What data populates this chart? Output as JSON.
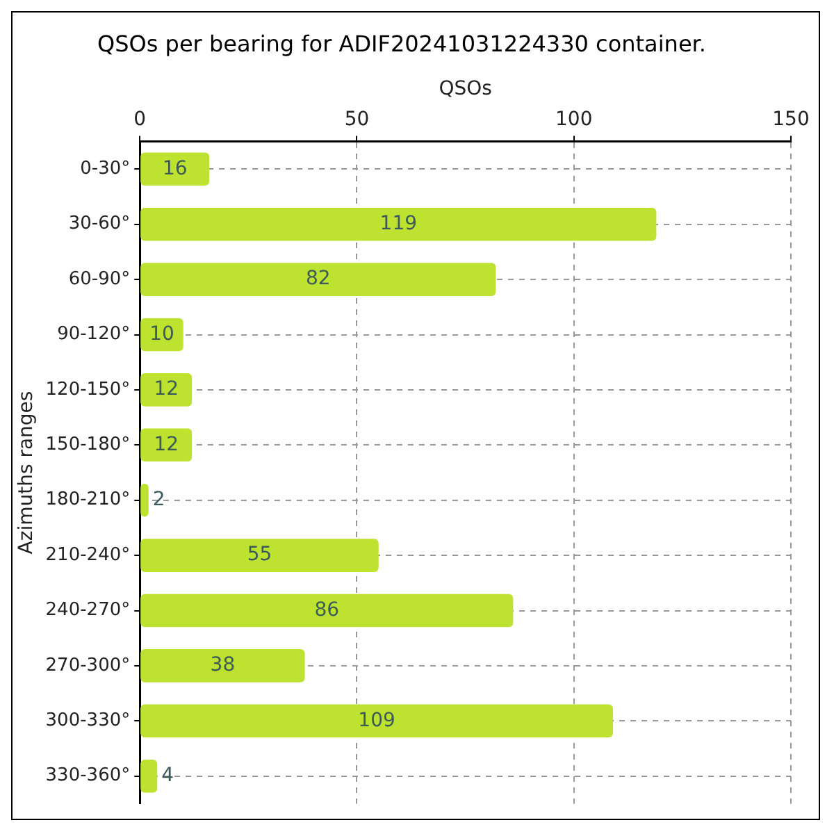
{
  "chart_data": {
    "type": "bar",
    "orientation": "horizontal",
    "title": "QSOs per bearing for ADIF20241031224330 container.",
    "xlabel": "QSOs",
    "ylabel": "Azimuths ranges",
    "categories": [
      "0-30°",
      "30-60°",
      "60-90°",
      "90-120°",
      "120-150°",
      "150-180°",
      "180-210°",
      "210-240°",
      "240-270°",
      "270-300°",
      "300-330°",
      "330-360°"
    ],
    "values": [
      16,
      119,
      82,
      10,
      12,
      12,
      2,
      55,
      86,
      38,
      109,
      4
    ],
    "color": "#bde22f",
    "xlim": [
      0,
      150
    ],
    "xticks": [
      0,
      50,
      100,
      150
    ],
    "grid": true,
    "data_labels": true,
    "legend": false
  }
}
